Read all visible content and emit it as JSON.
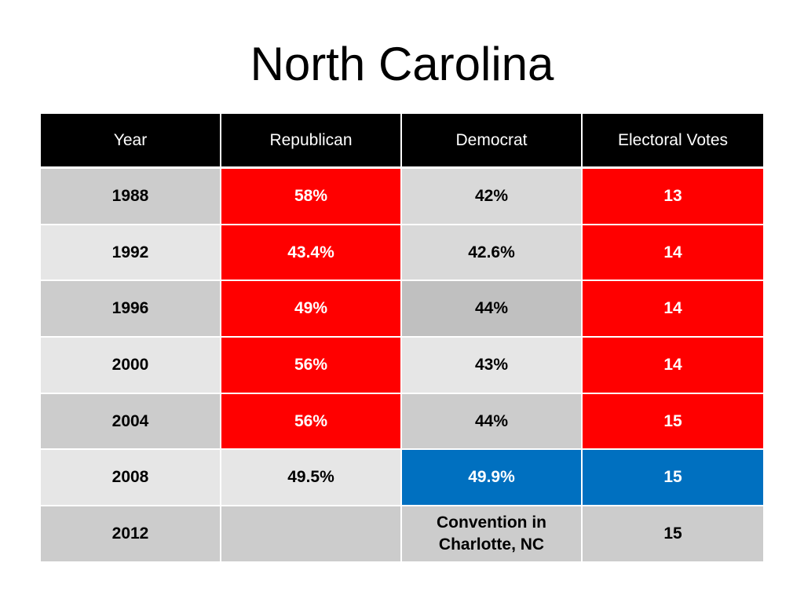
{
  "title": "North Carolina",
  "headers": [
    "Year",
    "Republican",
    "Democrat",
    "Electoral Votes"
  ],
  "rows": [
    {
      "year": "1988",
      "rep": "58%",
      "dem": "42%",
      "ev": "13"
    },
    {
      "year": "1992",
      "rep": "43.4%",
      "dem": "42.6%",
      "ev": "14"
    },
    {
      "year": "1996",
      "rep": "49%",
      "dem": "44%",
      "ev": "14"
    },
    {
      "year": "2000",
      "rep": "56%",
      "dem": "43%",
      "ev": "14"
    },
    {
      "year": "2004",
      "rep": "56%",
      "dem": "44%",
      "ev": "15"
    },
    {
      "year": "2008",
      "rep": "49.5%",
      "dem": "49.9%",
      "ev": "15"
    },
    {
      "year": "2012",
      "rep": "",
      "dem": "Convention in Charlotte, NC",
      "ev": "15"
    }
  ],
  "colors": {
    "republican_red": "#ff0000",
    "democrat_blue": "#0070c0",
    "header_black": "#000000"
  }
}
